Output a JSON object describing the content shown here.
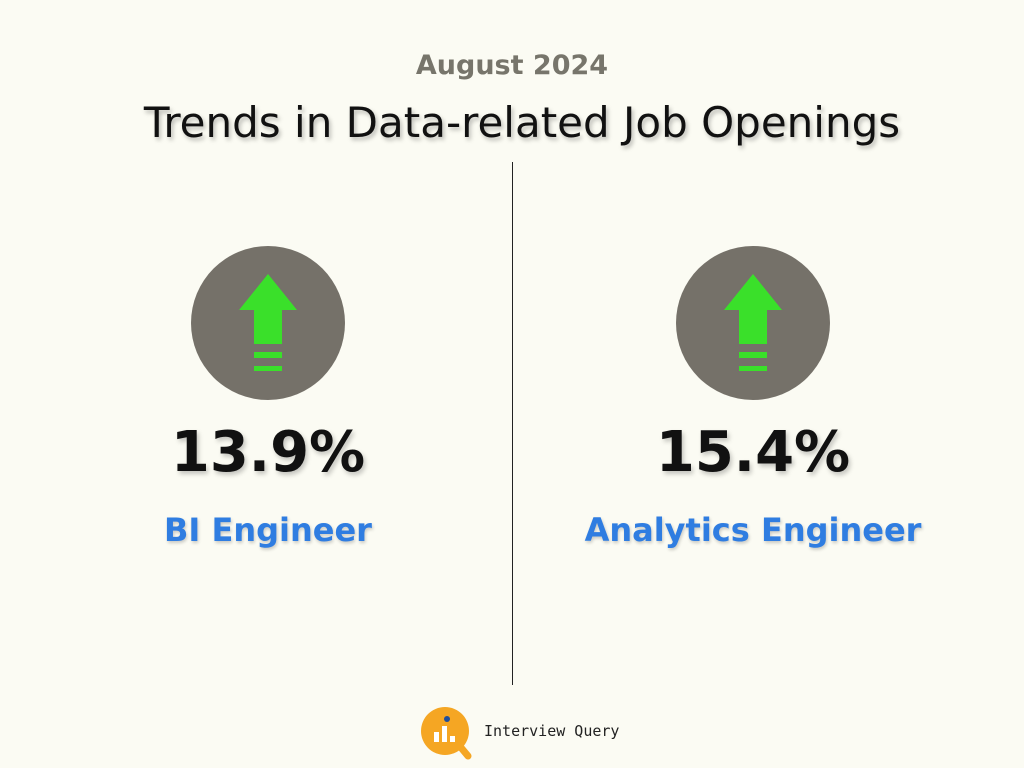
{
  "header": {
    "subtitle": "August 2024",
    "title": "Trends in Data-related Job Openings"
  },
  "stats": [
    {
      "value": "13.9%",
      "label": "BI Engineer"
    },
    {
      "value": "15.4%",
      "label": "Analytics Engineer"
    }
  ],
  "footer": {
    "brand": "Interview Query"
  }
}
